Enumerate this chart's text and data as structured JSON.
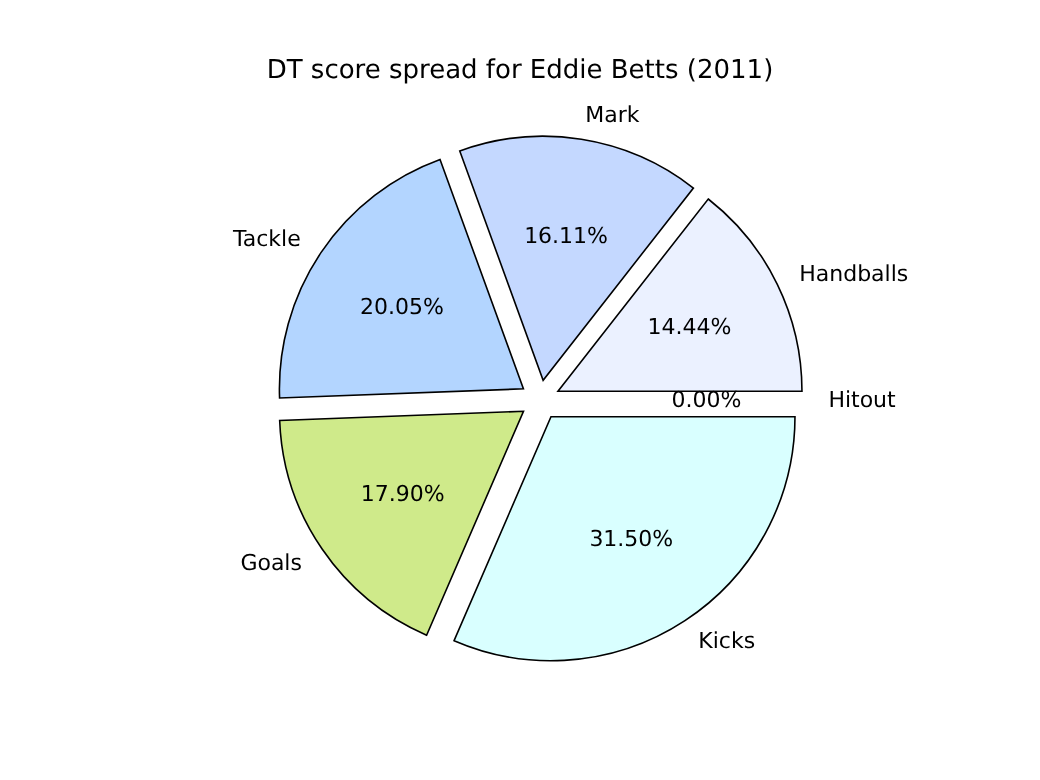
{
  "chart_data": {
    "type": "pie",
    "title": "DT score spread for Eddie Betts (2011)",
    "categories": [
      "Hitout",
      "Handballs",
      "Mark",
      "Tackle",
      "Goals",
      "Kicks"
    ],
    "values": [
      0,
      14.44,
      16.11,
      20.05,
      17.9,
      31.5
    ],
    "colors": [
      "#e6e6ff",
      "#ebf1ff",
      "#c4d8ff",
      "#b3d5ff",
      "#cfea8a",
      "#d9ffff"
    ],
    "value_labels": [
      "0.00%",
      "14.44%",
      "16.11%",
      "20.05%",
      "17.90%",
      "31.50%"
    ]
  }
}
